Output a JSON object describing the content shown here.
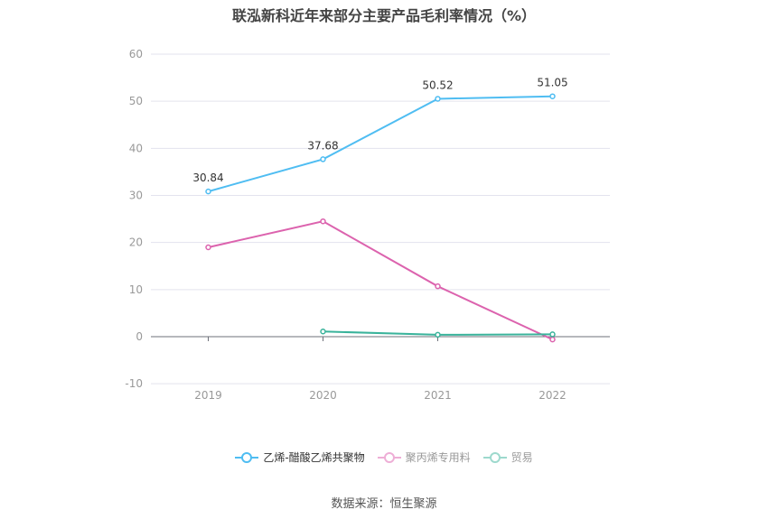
{
  "chart_data": {
    "type": "line",
    "title": "联泓新科近年来部分主要产品毛利率情况（%）",
    "categories": [
      "2019",
      "2020",
      "2021",
      "2022"
    ],
    "ylim": [
      -10,
      60
    ],
    "yticks": [
      -10,
      0,
      10,
      20,
      30,
      40,
      50,
      60
    ],
    "grid": true,
    "legend_position": "bottom",
    "series": [
      {
        "name": "乙烯-醋酸乙烯共聚物",
        "color": "#4fbdf2",
        "legend_color": "#4fbdf2",
        "values": [
          30.84,
          37.68,
          50.52,
          51.05
        ],
        "labels": [
          "30.84",
          "37.68",
          "50.52",
          "51.05"
        ]
      },
      {
        "name": "聚丙烯专用料",
        "color": "#dc63ae",
        "legend_color": "#eeaed6",
        "values": [
          18.98,
          24.5,
          10.7,
          -0.6
        ],
        "labels": null
      },
      {
        "name": "贸易",
        "color": "#3ab39b",
        "legend_color": "#9dd9cd",
        "values": [
          null,
          1.1,
          0.4,
          0.5
        ],
        "labels": null
      }
    ]
  },
  "source": "数据来源：恒生聚源"
}
